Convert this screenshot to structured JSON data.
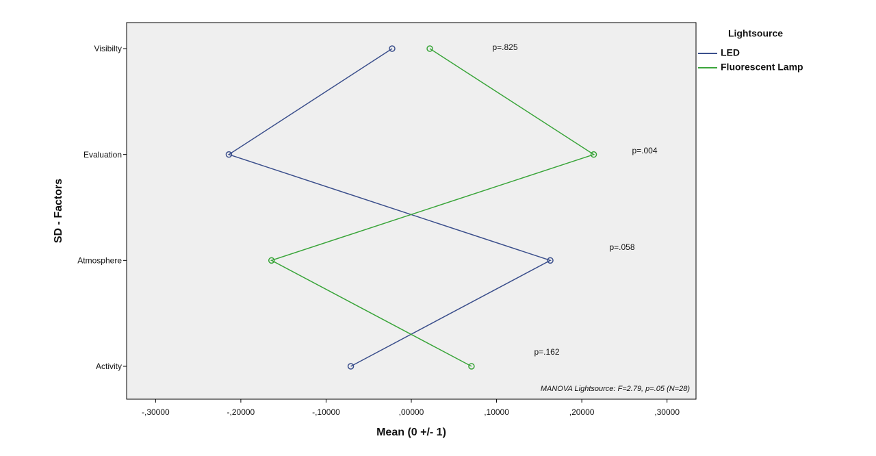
{
  "chart_data": {
    "type": "line",
    "orientation": "horizontal",
    "x_label": "Mean (0 +/- 1)",
    "y_label": "SD - Factors",
    "categories": [
      "Visibilty",
      "Evaluation",
      "Atmosphere",
      "Activity"
    ],
    "series": [
      {
        "name": "LED",
        "color": "#3b4f8c",
        "values": [
          -0.0225,
          -0.214,
          0.163,
          -0.071
        ]
      },
      {
        "name": "Fluorescent Lamp",
        "color": "#3aa53a",
        "values": [
          0.0217,
          0.214,
          -0.164,
          0.0706
        ]
      }
    ],
    "xlim": [
      -0.334,
      0.334
    ],
    "xticks": [
      {
        "value": -0.3,
        "label": "-,30000"
      },
      {
        "value": -0.2,
        "label": "-,20000"
      },
      {
        "value": -0.1,
        "label": "-,10000"
      },
      {
        "value": 0,
        "label": ",00000"
      },
      {
        "value": 0.1,
        "label": ",10000"
      },
      {
        "value": 0.2,
        "label": ",20000"
      },
      {
        "value": 0.3,
        "label": ",30000"
      }
    ],
    "legend_title": "Lightsource",
    "annotations": [
      "p=.825",
      "p=.004",
      "p=.058",
      "p=.162"
    ],
    "note": "MANOVA Lightsource: F=2.79, p=.05 (N=28)",
    "background": "#efefef"
  }
}
